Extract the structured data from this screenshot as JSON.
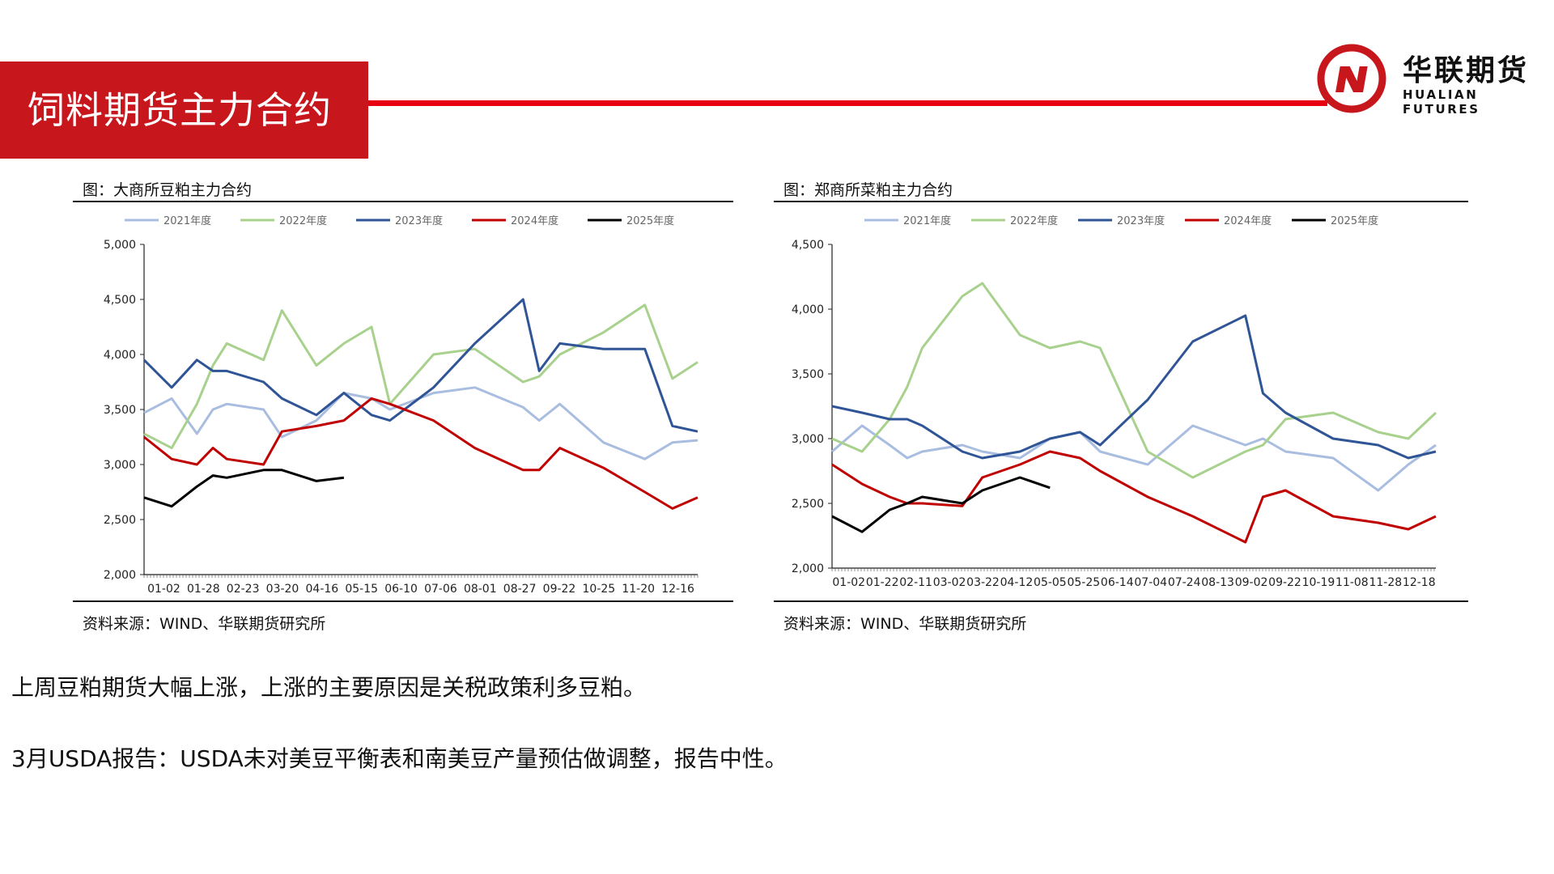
{
  "header": {
    "title": "饲料期货主力合约"
  },
  "logo": {
    "name_cn": "华联期货",
    "name_en": "HUALIAN FUTURES",
    "brand_color": "#c8161d"
  },
  "paragraphs": [
    "上周豆粕期货大幅上涨，上涨的主要原因是关税政策利多豆粕。",
    "3月USDA报告：USDA未对美豆平衡表和南美豆产量预估做调整，报告中性。"
  ],
  "chart_data": [
    {
      "type": "line",
      "title": "图：大商所豆粕主力合约",
      "source": "资料来源：WIND、华联期货研究所",
      "ylim": [
        2000,
        5000
      ],
      "yticks": [
        2000,
        2500,
        3000,
        3500,
        4000,
        4500,
        5000
      ],
      "ytick_labels": [
        "2,000",
        "2,500",
        "3,000",
        "3,500",
        "4,000",
        "4,500",
        "5,000"
      ],
      "xtick_labels": [
        "01-02",
        "01-28",
        "02-23",
        "03-20",
        "04-16",
        "05-15",
        "06-10",
        "07-06",
        "08-01",
        "08-27",
        "09-22",
        "10-25",
        "11-20",
        "12-16"
      ],
      "x_index": [
        0,
        12,
        23,
        30,
        36,
        52,
        60,
        75,
        87,
        99,
        107,
        126,
        144,
        165,
        172,
        181,
        200,
        218,
        230,
        241
      ],
      "legend_position": "top",
      "series": [
        {
          "name": "2021年度",
          "color": "#a9bde0",
          "values": [
            3470,
            3600,
            3280,
            3500,
            3550,
            3500,
            3250,
            3400,
            3650,
            3600,
            3500,
            3650,
            3700,
            3520,
            3400,
            3550,
            3200,
            3050,
            3200,
            3220
          ]
        },
        {
          "name": "2022年度",
          "color": "#a8d18d",
          "values": [
            3280,
            3150,
            3550,
            3900,
            4100,
            3950,
            4400,
            3900,
            4100,
            4250,
            3550,
            4000,
            4050,
            3750,
            3800,
            4000,
            4200,
            4450,
            3780,
            3930
          ]
        },
        {
          "name": "2023年度",
          "color": "#2f5597",
          "values": [
            3950,
            3700,
            3950,
            3850,
            3850,
            3750,
            3600,
            3450,
            3650,
            3450,
            3400,
            3700,
            4100,
            4500,
            3850,
            4100,
            4050,
            4050,
            3350,
            3300
          ]
        },
        {
          "name": "2024年度",
          "color": "#c00000",
          "values": [
            3250,
            3050,
            3000,
            3150,
            3050,
            3000,
            3300,
            3350,
            3400,
            3600,
            3550,
            3400,
            3150,
            2950,
            2950,
            3150,
            2970,
            2750,
            2600,
            2700
          ]
        },
        {
          "name": "2025年度",
          "color": "#000000",
          "values": [
            2700,
            2620,
            2800,
            2900,
            2880,
            2950,
            2950,
            2850,
            2880
          ]
        }
      ]
    },
    {
      "type": "line",
      "title": "图：郑商所菜粕主力合约",
      "source": "资料来源：WIND、华联期货研究所",
      "ylim": [
        2000,
        4500
      ],
      "yticks": [
        2000,
        2500,
        3000,
        3500,
        4000,
        4500
      ],
      "ytick_labels": [
        "2,000",
        "2,500",
        "3,000",
        "3,500",
        "4,000",
        "4,500"
      ],
      "xtick_labels": [
        "01-02",
        "01-22",
        "02-11",
        "03-02",
        "03-22",
        "04-12",
        "05-05",
        "05-25",
        "06-14",
        "07-04",
        "07-24",
        "08-13",
        "09-02",
        "09-22",
        "10-19",
        "11-08",
        "11-28",
        "12-18"
      ],
      "x_index": [
        0,
        12,
        23,
        30,
        36,
        52,
        60,
        75,
        87,
        99,
        107,
        126,
        144,
        165,
        172,
        181,
        200,
        218,
        230,
        241
      ],
      "legend_position": "top",
      "series": [
        {
          "name": "2021年度",
          "color": "#a9bde0",
          "values": [
            2900,
            3100,
            2950,
            2850,
            2900,
            2950,
            2900,
            2850,
            3000,
            3050,
            2900,
            2800,
            3100,
            2950,
            3000,
            2900,
            2850,
            2600,
            2800,
            2950
          ]
        },
        {
          "name": "2022年度",
          "color": "#a8d18d",
          "values": [
            3000,
            2900,
            3150,
            3400,
            3700,
            4100,
            4200,
            3800,
            3700,
            3750,
            3700,
            2900,
            2700,
            2900,
            2950,
            3150,
            3200,
            3050,
            3000,
            3200
          ]
        },
        {
          "name": "2023年度",
          "color": "#2f5597",
          "values": [
            3250,
            3200,
            3150,
            3150,
            3100,
            2900,
            2850,
            2900,
            3000,
            3050,
            2950,
            3300,
            3750,
            3950,
            3350,
            3200,
            3000,
            2950,
            2850,
            2900
          ]
        },
        {
          "name": "2024年度",
          "color": "#c00000",
          "values": [
            2800,
            2650,
            2550,
            2500,
            2500,
            2480,
            2700,
            2800,
            2900,
            2850,
            2750,
            2550,
            2400,
            2200,
            2550,
            2600,
            2400,
            2350,
            2300,
            2400
          ]
        },
        {
          "name": "2025年度",
          "color": "#000000",
          "values": [
            2400,
            2280,
            2450,
            2500,
            2550,
            2500,
            2600,
            2700,
            2620
          ]
        }
      ]
    }
  ]
}
